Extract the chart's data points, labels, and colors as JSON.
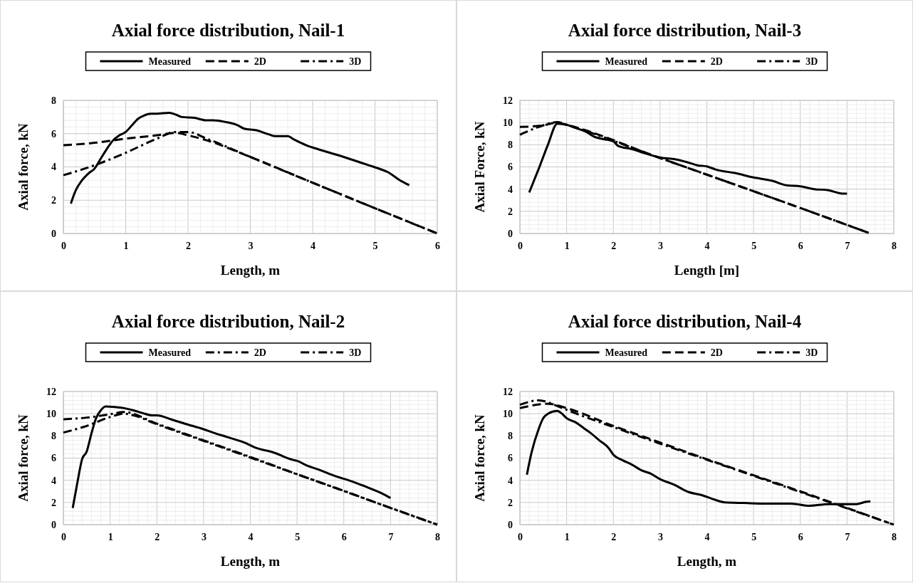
{
  "chart_data": [
    {
      "type": "line",
      "title": "Axial force distribution, Nail-1",
      "xlabel": "Length, m",
      "ylabel": "Axial force,  kN",
      "xlim": [
        0,
        6
      ],
      "xticks": [
        0,
        1,
        2,
        3,
        4,
        5,
        6
      ],
      "ylim": [
        0,
        8
      ],
      "yticks": [
        0,
        2,
        4,
        6,
        8
      ],
      "grid": true,
      "legend": "top",
      "series": [
        {
          "name": "Measured",
          "color": "#000000",
          "line_style": "solid",
          "x": [
            0.12,
            0.2,
            0.3,
            0.4,
            0.5,
            0.6,
            0.7,
            0.8,
            0.9,
            1.0,
            1.1,
            1.2,
            1.3,
            1.4,
            1.5,
            1.7,
            1.8,
            1.9,
            2.1,
            2.3,
            2.4,
            2.6,
            2.8,
            2.9,
            3.1,
            3.3,
            3.4,
            3.6,
            3.7,
            3.9,
            4.1,
            4.5,
            4.9,
            5.1,
            5.2,
            5.4,
            5.55
          ],
          "values": [
            1.8,
            2.6,
            3.2,
            3.6,
            3.9,
            4.5,
            5.1,
            5.6,
            5.9,
            6.1,
            6.5,
            6.9,
            7.1,
            7.2,
            7.2,
            7.25,
            7.15,
            7.0,
            6.95,
            6.8,
            6.8,
            6.7,
            6.5,
            6.3,
            6.2,
            5.95,
            5.85,
            5.85,
            5.65,
            5.3,
            5.05,
            4.6,
            4.1,
            3.85,
            3.7,
            3.2,
            2.9
          ]
        },
        {
          "name": "2D",
          "color": "#000000",
          "line_style": "dashed",
          "x": [
            0,
            0.5,
            1,
            1.5,
            1.8,
            2.0,
            2.3,
            3,
            4,
            6
          ],
          "values": [
            5.3,
            5.45,
            5.7,
            5.9,
            6.05,
            5.9,
            5.6,
            4.6,
            3.05,
            0
          ]
        },
        {
          "name": "3D",
          "color": "#000000",
          "line_style": "dashdot",
          "x": [
            0,
            0.5,
            1,
            1.5,
            1.8,
            2.0,
            2.3,
            3,
            4,
            6
          ],
          "values": [
            3.5,
            4.1,
            4.85,
            5.7,
            6.1,
            6.1,
            5.7,
            4.6,
            3.05,
            0
          ]
        }
      ]
    },
    {
      "type": "line",
      "title": "Axial force distribution, Nail-3",
      "xlabel": "Length [m]",
      "ylabel": "Axial Force,  kN",
      "xlim": [
        0,
        8
      ],
      "xticks": [
        0,
        1,
        2,
        3,
        4,
        5,
        6,
        7,
        8
      ],
      "ylim": [
        0,
        12
      ],
      "yticks": [
        0,
        2,
        4,
        6,
        8,
        10,
        12
      ],
      "grid": true,
      "legend": "top",
      "series": [
        {
          "name": "Measured",
          "color": "#000000",
          "line_style": "solid",
          "x": [
            0.2,
            0.4,
            0.6,
            0.8,
            1.0,
            1.2,
            1.4,
            1.6,
            1.8,
            2.0,
            2.1,
            2.4,
            2.7,
            3.0,
            3.3,
            3.6,
            3.8,
            4.0,
            4.2,
            4.6,
            5.0,
            5.4,
            5.7,
            6.0,
            6.3,
            6.6,
            6.9,
            7.0
          ],
          "values": [
            3.7,
            5.8,
            8.0,
            9.9,
            9.8,
            9.5,
            9.2,
            8.7,
            8.5,
            8.3,
            7.9,
            7.6,
            7.2,
            6.85,
            6.7,
            6.4,
            6.15,
            6.05,
            5.75,
            5.45,
            5.05,
            4.75,
            4.35,
            4.25,
            4.0,
            3.9,
            3.6,
            3.6
          ]
        },
        {
          "name": "2D",
          "color": "#000000",
          "line_style": "dashed",
          "x": [
            0,
            0.5,
            0.8,
            1.0,
            3.0,
            6.0,
            7.5
          ],
          "values": [
            9.6,
            9.75,
            10.0,
            9.8,
            6.8,
            2.3,
            0
          ]
        },
        {
          "name": "3D",
          "color": "#000000",
          "line_style": "dashdot",
          "x": [
            0,
            0.4,
            0.8,
            1.0,
            3.0,
            6.0,
            7.5
          ],
          "values": [
            8.9,
            9.6,
            10.05,
            9.8,
            6.8,
            2.3,
            0
          ]
        }
      ]
    },
    {
      "type": "line",
      "title": "Axial force distribution, Nail-2",
      "xlabel": "Length, m",
      "ylabel": "Axial force,  kN",
      "xlim": [
        0,
        8
      ],
      "xticks": [
        0,
        1,
        2,
        3,
        4,
        5,
        6,
        7,
        8
      ],
      "ylim": [
        0,
        12
      ],
      "yticks": [
        0,
        2,
        4,
        6,
        8,
        10,
        12
      ],
      "grid": true,
      "legend": "top",
      "series": [
        {
          "name": "Measured",
          "color": "#000000",
          "line_style": "solid",
          "x": [
            0.2,
            0.3,
            0.4,
            0.5,
            0.6,
            0.7,
            0.8,
            0.9,
            1.1,
            1.3,
            1.5,
            1.7,
            1.9,
            2.0,
            2.3,
            2.6,
            3.0,
            3.2,
            3.5,
            3.9,
            4.1,
            4.5,
            4.9,
            5.0,
            5.2,
            5.5,
            5.8,
            6.1,
            6.3,
            6.6,
            6.8,
            7.0
          ],
          "values": [
            1.5,
            3.8,
            5.9,
            6.6,
            8.2,
            9.6,
            10.3,
            10.65,
            10.6,
            10.5,
            10.3,
            10.05,
            9.85,
            9.85,
            9.5,
            9.1,
            8.6,
            8.3,
            7.9,
            7.35,
            6.95,
            6.5,
            5.85,
            5.75,
            5.35,
            4.9,
            4.4,
            4.0,
            3.7,
            3.2,
            2.85,
            2.4
          ]
        },
        {
          "name": "2D",
          "color": "#000000",
          "line_style": "dashdot",
          "x": [
            0,
            0.5,
            1,
            1.3,
            2,
            3,
            4,
            5,
            6,
            7,
            8
          ],
          "values": [
            9.5,
            9.65,
            9.95,
            10.15,
            9.1,
            7.6,
            6.1,
            4.55,
            3.05,
            1.5,
            0
          ]
        },
        {
          "name": "3D",
          "color": "#000000",
          "line_style": "dashdot",
          "x": [
            0,
            0.5,
            1,
            1.3,
            1.5,
            2,
            3,
            8
          ],
          "values": [
            8.3,
            8.9,
            9.7,
            10.0,
            9.85,
            9.05,
            7.55,
            0
          ]
        }
      ]
    },
    {
      "type": "line",
      "title": "Axial force distribution, Nail-4",
      "xlabel": "Length, m",
      "ylabel": "Axial force,  kN",
      "xlim": [
        0,
        8
      ],
      "xticks": [
        0,
        1,
        2,
        3,
        4,
        5,
        6,
        7,
        8
      ],
      "ylim": [
        0,
        12
      ],
      "yticks": [
        0,
        2,
        4,
        6,
        8,
        10,
        12
      ],
      "grid": true,
      "legend": "top",
      "series": [
        {
          "name": "Measured",
          "color": "#000000",
          "line_style": "solid",
          "x": [
            0.15,
            0.25,
            0.4,
            0.5,
            0.6,
            0.8,
            0.9,
            1.0,
            1.2,
            1.4,
            1.5,
            1.7,
            1.9,
            2.0,
            2.2,
            2.4,
            2.6,
            2.8,
            3.0,
            3.3,
            3.6,
            3.9,
            4.1,
            4.4,
            4.8,
            5.2,
            5.8,
            6.2,
            6.6,
            7.0,
            7.2,
            7.4,
            7.5
          ],
          "values": [
            4.5,
            6.5,
            8.6,
            9.6,
            10.0,
            10.25,
            10.0,
            9.6,
            9.2,
            8.6,
            8.3,
            7.6,
            6.9,
            6.3,
            5.8,
            5.4,
            4.9,
            4.6,
            4.1,
            3.6,
            2.95,
            2.65,
            2.35,
            2.0,
            1.95,
            1.9,
            1.9,
            1.7,
            1.85,
            1.85,
            1.85,
            2.05,
            2.1
          ]
        },
        {
          "name": "2D",
          "color": "#000000",
          "line_style": "dashed",
          "x": [
            0,
            0.6,
            1.0,
            2,
            3,
            4,
            5,
            6,
            7,
            7.9
          ],
          "values": [
            10.5,
            10.9,
            10.5,
            8.9,
            7.4,
            5.9,
            4.45,
            3.0,
            1.5,
            0.15
          ]
        },
        {
          "name": "3D",
          "color": "#000000",
          "line_style": "dashdot",
          "x": [
            0,
            0.4,
            0.8,
            1.0,
            2,
            3,
            4,
            5,
            8
          ],
          "values": [
            10.8,
            11.2,
            10.7,
            10.35,
            8.8,
            7.3,
            5.85,
            4.4,
            0
          ]
        }
      ]
    }
  ]
}
